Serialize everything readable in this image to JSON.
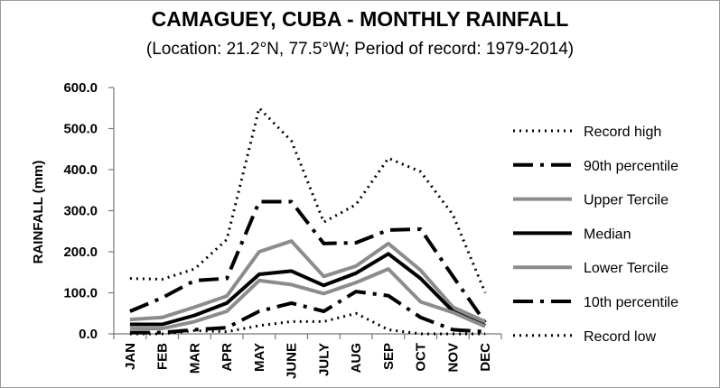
{
  "chart_data": {
    "type": "line",
    "title": "CAMAGUEY, CUBA - MONTHLY RAINFALL",
    "subtitle": "(Location: 21.2°N, 77.5°W; Period of record: 1979-2014)",
    "xlabel": "",
    "ylabel": "RAINFALL (mm)",
    "ylim": [
      0,
      600
    ],
    "yticks": [
      "0.0",
      "100.0",
      "200.0",
      "300.0",
      "400.0",
      "500.0",
      "600.0"
    ],
    "categories": [
      "JAN",
      "FEB",
      "MAR",
      "APR",
      "MAY",
      "JUNE",
      "JULY",
      "AUG",
      "SEP",
      "OCT",
      "NOV",
      "DEC"
    ],
    "grid": "none",
    "legend_position": "right",
    "series": [
      {
        "name": "Record high",
        "style": "dotted",
        "color": "#000000",
        "width": 3,
        "values": [
          135,
          133,
          158,
          230,
          550,
          470,
          272,
          315,
          428,
          395,
          290,
          100
        ]
      },
      {
        "name": "90th percentile",
        "style": "dashdot",
        "color": "#000000",
        "width": 4,
        "values": [
          55,
          88,
          130,
          135,
          322,
          322,
          220,
          222,
          253,
          255,
          140,
          28
        ]
      },
      {
        "name": "Upper Tercile",
        "style": "solid",
        "color": "#8c8c8c",
        "width": 4,
        "values": [
          35,
          40,
          65,
          92,
          200,
          226,
          140,
          165,
          220,
          155,
          65,
          30
        ]
      },
      {
        "name": "Median",
        "style": "solid",
        "color": "#000000",
        "width": 4,
        "values": [
          23,
          23,
          45,
          75,
          145,
          153,
          118,
          148,
          195,
          135,
          55,
          20
        ]
      },
      {
        "name": "Lower Tercile",
        "style": "solid",
        "color": "#8c8c8c",
        "width": 4,
        "values": [
          13,
          13,
          30,
          55,
          130,
          120,
          98,
          125,
          158,
          78,
          52,
          18
        ]
      },
      {
        "name": "10th percentile",
        "style": "dashdot",
        "color": "#000000",
        "width": 4,
        "values": [
          3,
          3,
          10,
          15,
          55,
          75,
          55,
          103,
          93,
          40,
          10,
          5
        ]
      },
      {
        "name": "Record low",
        "style": "dotted",
        "color": "#000000",
        "width": 3,
        "values": [
          0,
          0,
          8,
          5,
          20,
          30,
          30,
          50,
          10,
          0,
          0,
          0
        ]
      }
    ]
  }
}
